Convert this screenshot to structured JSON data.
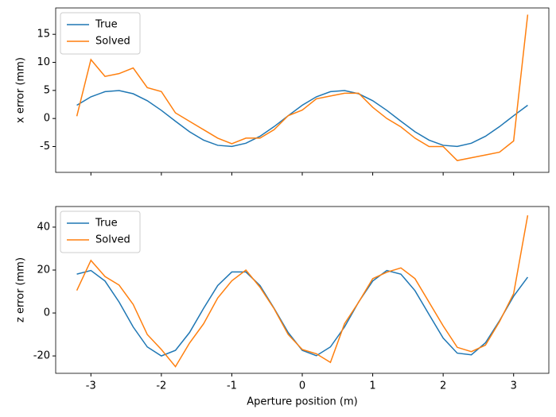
{
  "chart_data": [
    {
      "type": "line",
      "y_label": "x error (mm)",
      "xlim": [
        -3.5,
        3.5
      ],
      "ylim": [
        -9.6,
        19.7
      ],
      "yticks": [
        -5,
        0,
        5,
        10,
        15
      ],
      "legend": "upper left",
      "x": [
        -3.2,
        -3.0,
        -2.8,
        -2.6,
        -2.4,
        -2.2,
        -2.0,
        -1.8,
        -1.6,
        -1.4,
        -1.2,
        -1.0,
        -0.8,
        -0.6,
        -0.4,
        -0.2,
        0,
        0.2,
        0.4,
        0.6,
        0.8,
        1.0,
        1.2,
        1.4,
        1.6,
        1.8,
        2.0,
        2.2,
        2.4,
        2.6,
        2.8,
        3.0,
        3.2
      ],
      "series": [
        {
          "name": "True",
          "color": "#1f77b4",
          "values": [
            2.36,
            3.86,
            4.78,
            4.98,
            4.41,
            3.17,
            1.45,
            -0.49,
            -2.36,
            -3.86,
            -4.78,
            -4.98,
            -4.41,
            -3.17,
            -1.45,
            0.49,
            2.36,
            3.86,
            4.78,
            4.98,
            4.41,
            3.17,
            1.45,
            -0.49,
            -2.36,
            -3.86,
            -4.78,
            -4.98,
            -4.41,
            -3.17,
            -1.45,
            0.49,
            2.36
          ]
        },
        {
          "name": "Solved",
          "color": "#ff7f0e",
          "values": [
            0.4,
            10.5,
            7.5,
            8,
            9,
            5.5,
            4.8,
            1,
            -0.5,
            -2,
            -3.5,
            -4.5,
            -3.5,
            -3.5,
            -2,
            0.5,
            1.5,
            3.5,
            4,
            4.5,
            4.5,
            2,
            0,
            -1.5,
            -3.5,
            -5,
            -5,
            -7.5,
            -7,
            -6.5,
            -6,
            -4,
            18.5
          ]
        }
      ]
    },
    {
      "type": "line",
      "x_label": "Aperture position (m)",
      "y_label": "z error (mm)",
      "xlim": [
        -3.5,
        3.5
      ],
      "ylim": [
        -28.1,
        49.6
      ],
      "xticks": [
        -3,
        -2,
        -1,
        0,
        1,
        2,
        3
      ],
      "yticks": [
        -20,
        0,
        20,
        40
      ],
      "legend": "upper left",
      "x": [
        -3.2,
        -3.0,
        -2.8,
        -2.6,
        -2.4,
        -2.2,
        -2.0,
        -1.8,
        -1.6,
        -1.4,
        -1.2,
        -1.0,
        -0.8,
        -0.6,
        -0.4,
        -0.2,
        0,
        0.2,
        0.4,
        0.6,
        0.8,
        1.0,
        1.2,
        1.4,
        1.6,
        1.8,
        2.0,
        2.2,
        2.4,
        2.6,
        2.8,
        3.0,
        3.2
      ],
      "series": [
        {
          "name": "True",
          "color": "#1f77b4",
          "values": [
            18.1,
            19.8,
            14.9,
            5.1,
            -6.5,
            -15.8,
            -20.0,
            -17.4,
            -9.1,
            2.2,
            12.8,
            19.1,
            19.1,
            12.8,
            2.2,
            -9.1,
            -17.4,
            -19.9,
            -15.8,
            -6.5,
            5.1,
            14.9,
            19.8,
            18.1,
            10.4,
            -0.7,
            -11.7,
            -18.7,
            -19.5,
            -13.9,
            -3.6,
            7.8,
            16.7
          ]
        },
        {
          "name": "Solved",
          "color": "#ff7f0e",
          "values": [
            10.5,
            24.5,
            17,
            13,
            4,
            -10,
            -17,
            -25,
            -14,
            -5,
            7,
            15,
            20,
            12,
            2,
            -10,
            -17,
            -19,
            -23,
            -5,
            5,
            16,
            19,
            21,
            16,
            5,
            -6,
            -16,
            -18,
            -15,
            -4,
            9,
            45.5
          ]
        }
      ]
    }
  ]
}
